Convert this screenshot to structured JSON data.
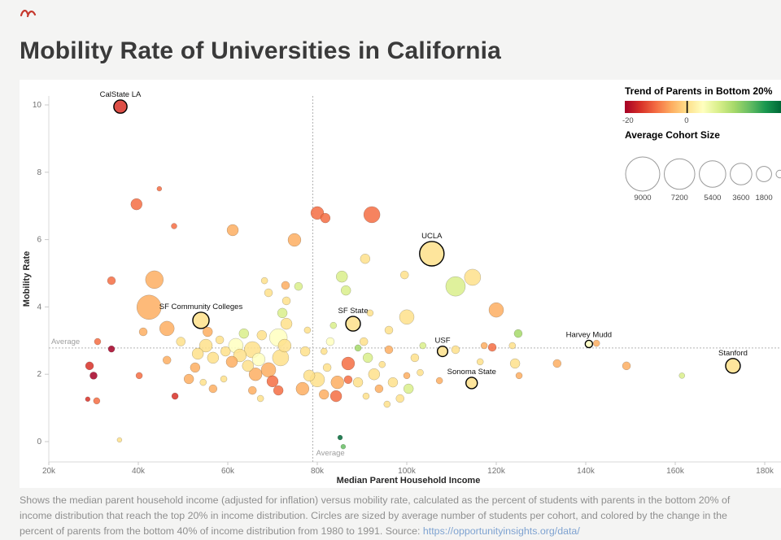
{
  "page": {
    "title": "Mobility Rate of Universities in California",
    "caption_text": "Shows the median parent household income (adjusted for inflation) versus mobility rate, calculated as the percent of students with parents in the bottom 20% of income distribution that reach the top 20% in income distribution. Circles are sized by average number of students per cohort, and colored by the change in the percent of parents from the bottom 40% of income distribution from 1980 to 1991. Source: ",
    "caption_link": "https://opportunityinsights.org/data/"
  },
  "chart_data": {
    "type": "scatter",
    "title": "Mobility Rate of Universities in California",
    "xlabel": "Median Parent Household Income",
    "ylabel": "Mobility Rate",
    "x_unit": "USD, thousands",
    "xlim": [
      20,
      185
    ],
    "ylim": [
      -0.6,
      10.5
    ],
    "grid": false,
    "x_ticks": [
      {
        "v": 20,
        "l": "20k"
      },
      {
        "v": 40,
        "l": "40k"
      },
      {
        "v": 60,
        "l": "60k"
      },
      {
        "v": 80,
        "l": "80k"
      },
      {
        "v": 100,
        "l": "100k"
      },
      {
        "v": 120,
        "l": "120k"
      },
      {
        "v": 140,
        "l": "140k"
      },
      {
        "v": 160,
        "l": "160k"
      },
      {
        "v": 180,
        "l": "180k"
      }
    ],
    "y_ticks": [
      {
        "v": 0,
        "l": "0"
      },
      {
        "v": 2,
        "l": "2"
      },
      {
        "v": 4,
        "l": "4"
      },
      {
        "v": 6,
        "l": "6"
      },
      {
        "v": 8,
        "l": "8"
      },
      {
        "v": 10,
        "l": "10"
      }
    ],
    "avg_x": {
      "value": 79,
      "label": "Average"
    },
    "avg_y": {
      "value": 2.78,
      "label": "Average"
    },
    "legend_trend": {
      "title": "Trend of Parents in Bottom 20%",
      "colors": [
        "#a50026",
        "#d73027",
        "#f46d43",
        "#fdae61",
        "#fee08b",
        "#ffffbf",
        "#d9ef8b",
        "#a6d96a",
        "#66bd63",
        "#1a9850",
        "#006837"
      ],
      "zero_frac": 0.395,
      "ticks": [
        {
          "l": "-20",
          "frac": 0.02
        },
        {
          "l": "0",
          "frac": 0.395
        }
      ]
    },
    "legend_size": {
      "title": "Average Cohort Size",
      "max_s": 9000,
      "max_r": 21,
      "items": [
        {
          "s": 9000,
          "l": "9000"
        },
        {
          "s": 7200,
          "l": "7200"
        },
        {
          "s": 5400,
          "l": "5400"
        },
        {
          "s": 3600,
          "l": "3600"
        },
        {
          "s": 1800,
          "l": "1800"
        },
        {
          "s": 450,
          "l": ""
        }
      ]
    },
    "points": [
      {
        "x": 36.0,
        "y": 9.95,
        "s": 1350,
        "c": "#d73027",
        "n": "CalState LA"
      },
      {
        "x": 105.6,
        "y": 5.58,
        "s": 4600,
        "c": "#fee08b",
        "n": "UCLA"
      },
      {
        "x": 54.0,
        "y": 3.6,
        "s": 2050,
        "c": "#fee08b",
        "n": "SF Community Colleges"
      },
      {
        "x": 88.0,
        "y": 3.5,
        "s": 1650,
        "c": "#fee08b",
        "n": "SF State"
      },
      {
        "x": 108.0,
        "y": 2.68,
        "s": 830,
        "c": "#fee08b",
        "n": "USF"
      },
      {
        "x": 140.7,
        "y": 2.9,
        "s": 420,
        "c": "#ffffbf",
        "n": "Harvey Mudd"
      },
      {
        "x": 114.5,
        "y": 1.74,
        "s": 1000,
        "c": "#fee08b",
        "n": "Sonoma State"
      },
      {
        "x": 172.9,
        "y": 2.25,
        "s": 1650,
        "c": "#fee08b",
        "n": "Stanford"
      },
      {
        "x": 39.6,
        "y": 7.05,
        "s": 1000,
        "c": "#f46d43"
      },
      {
        "x": 44.7,
        "y": 7.51,
        "s": 180,
        "c": "#f46d43"
      },
      {
        "x": 34.0,
        "y": 4.78,
        "s": 510,
        "c": "#f46d43"
      },
      {
        "x": 43.6,
        "y": 4.81,
        "s": 2450,
        "c": "#fdae61"
      },
      {
        "x": 42.4,
        "y": 3.99,
        "s": 4600,
        "c": "#fdae61"
      },
      {
        "x": 48.0,
        "y": 6.4,
        "s": 250,
        "c": "#f46d43"
      },
      {
        "x": 61.1,
        "y": 6.28,
        "s": 1000,
        "c": "#fdae61"
      },
      {
        "x": 74.9,
        "y": 5.99,
        "s": 1300,
        "c": "#fdae61"
      },
      {
        "x": 80.0,
        "y": 6.79,
        "s": 1300,
        "c": "#f46d43"
      },
      {
        "x": 81.8,
        "y": 6.64,
        "s": 730,
        "c": "#f46d43"
      },
      {
        "x": 92.2,
        "y": 6.74,
        "s": 2050,
        "c": "#f46d43"
      },
      {
        "x": 90.7,
        "y": 5.43,
        "s": 730,
        "c": "#fee08b"
      },
      {
        "x": 110.9,
        "y": 4.61,
        "s": 2950,
        "c": "#d9ef8b"
      },
      {
        "x": 114.7,
        "y": 4.88,
        "s": 2050,
        "c": "#fee08b"
      },
      {
        "x": 120.0,
        "y": 3.91,
        "s": 1650,
        "c": "#fdae61"
      },
      {
        "x": 100.0,
        "y": 3.7,
        "s": 1650,
        "c": "#fee08b"
      },
      {
        "x": 86.4,
        "y": 4.49,
        "s": 730,
        "c": "#d9ef8b"
      },
      {
        "x": 85.5,
        "y": 4.9,
        "s": 1000,
        "c": "#d9ef8b"
      },
      {
        "x": 96.0,
        "y": 2.73,
        "s": 510,
        "c": "#fdae61"
      },
      {
        "x": 86.9,
        "y": 2.32,
        "s": 1300,
        "c": "#f46d43"
      },
      {
        "x": 84.5,
        "y": 1.76,
        "s": 1300,
        "c": "#fdae61"
      },
      {
        "x": 84.2,
        "y": 1.35,
        "s": 1000,
        "c": "#f46d43"
      },
      {
        "x": 85.1,
        "y": 0.12,
        "s": 180,
        "c": "#006837"
      },
      {
        "x": 85.8,
        "y": -0.15,
        "s": 180,
        "c": "#66bd63"
      },
      {
        "x": 29.1,
        "y": 2.25,
        "s": 510,
        "c": "#d73027"
      },
      {
        "x": 30.0,
        "y": 1.96,
        "s": 420,
        "c": "#a50026"
      },
      {
        "x": 28.7,
        "y": 1.26,
        "s": 180,
        "c": "#d73027"
      },
      {
        "x": 30.7,
        "y": 1.21,
        "s": 330,
        "c": "#f46d43"
      },
      {
        "x": 34.0,
        "y": 2.75,
        "s": 330,
        "c": "#a50026"
      },
      {
        "x": 35.8,
        "y": 0.05,
        "s": 180,
        "c": "#fee08b"
      },
      {
        "x": 40.2,
        "y": 1.96,
        "s": 330,
        "c": "#f46d43"
      },
      {
        "x": 41.1,
        "y": 3.26,
        "s": 510,
        "c": "#fdae61"
      },
      {
        "x": 46.4,
        "y": 3.36,
        "s": 1650,
        "c": "#fdae61"
      },
      {
        "x": 49.5,
        "y": 2.97,
        "s": 620,
        "c": "#fee08b"
      },
      {
        "x": 46.4,
        "y": 2.42,
        "s": 510,
        "c": "#fdae61"
      },
      {
        "x": 48.2,
        "y": 1.35,
        "s": 330,
        "c": "#d73027"
      },
      {
        "x": 51.3,
        "y": 1.86,
        "s": 730,
        "c": "#fdae61"
      },
      {
        "x": 53.3,
        "y": 2.61,
        "s": 1000,
        "c": "#fee08b"
      },
      {
        "x": 52.7,
        "y": 2.2,
        "s": 730,
        "c": "#fdae61"
      },
      {
        "x": 55.1,
        "y": 2.85,
        "s": 1300,
        "c": "#fee08b"
      },
      {
        "x": 56.7,
        "y": 2.49,
        "s": 1000,
        "c": "#fee08b"
      },
      {
        "x": 55.5,
        "y": 3.26,
        "s": 730,
        "c": "#fdae61"
      },
      {
        "x": 58.2,
        "y": 3.02,
        "s": 510,
        "c": "#fee08b"
      },
      {
        "x": 59.5,
        "y": 2.68,
        "s": 730,
        "c": "#fee08b"
      },
      {
        "x": 60.9,
        "y": 2.37,
        "s": 1000,
        "c": "#fdae61"
      },
      {
        "x": 61.8,
        "y": 2.85,
        "s": 1650,
        "c": "#ffffbf"
      },
      {
        "x": 62.7,
        "y": 2.56,
        "s": 1300,
        "c": "#fee08b"
      },
      {
        "x": 63.6,
        "y": 3.21,
        "s": 730,
        "c": "#d9ef8b"
      },
      {
        "x": 64.5,
        "y": 2.25,
        "s": 1000,
        "c": "#fee08b"
      },
      {
        "x": 65.5,
        "y": 2.73,
        "s": 2050,
        "c": "#fee08b"
      },
      {
        "x": 66.9,
        "y": 2.44,
        "s": 1300,
        "c": "#ffffbf"
      },
      {
        "x": 66.2,
        "y": 2.0,
        "s": 1300,
        "c": "#fdae61"
      },
      {
        "x": 67.6,
        "y": 3.16,
        "s": 730,
        "c": "#fee08b"
      },
      {
        "x": 69.1,
        "y": 2.13,
        "s": 1650,
        "c": "#fdae61"
      },
      {
        "x": 70.0,
        "y": 1.79,
        "s": 1000,
        "c": "#f46d43"
      },
      {
        "x": 71.3,
        "y": 1.52,
        "s": 730,
        "c": "#f46d43"
      },
      {
        "x": 71.8,
        "y": 2.49,
        "s": 2050,
        "c": "#fee08b"
      },
      {
        "x": 71.3,
        "y": 3.09,
        "s": 2450,
        "c": "#ffffbf"
      },
      {
        "x": 72.7,
        "y": 2.85,
        "s": 1300,
        "c": "#fee08b"
      },
      {
        "x": 73.1,
        "y": 3.5,
        "s": 1000,
        "c": "#fee08b"
      },
      {
        "x": 72.2,
        "y": 3.82,
        "s": 730,
        "c": "#d9ef8b"
      },
      {
        "x": 69.1,
        "y": 4.42,
        "s": 510,
        "c": "#fee08b"
      },
      {
        "x": 68.2,
        "y": 4.78,
        "s": 330,
        "c": "#fee08b"
      },
      {
        "x": 73.1,
        "y": 4.18,
        "s": 510,
        "c": "#fee08b"
      },
      {
        "x": 72.9,
        "y": 4.64,
        "s": 510,
        "c": "#fdae61"
      },
      {
        "x": 75.8,
        "y": 4.61,
        "s": 510,
        "c": "#d9ef8b"
      },
      {
        "x": 77.3,
        "y": 2.68,
        "s": 730,
        "c": "#fee08b"
      },
      {
        "x": 77.8,
        "y": 3.31,
        "s": 330,
        "c": "#fee08b"
      },
      {
        "x": 78.2,
        "y": 1.96,
        "s": 1000,
        "c": "#fee08b"
      },
      {
        "x": 76.7,
        "y": 1.57,
        "s": 1300,
        "c": "#fdae61"
      },
      {
        "x": 80.0,
        "y": 1.84,
        "s": 1650,
        "c": "#fee08b"
      },
      {
        "x": 81.5,
        "y": 1.4,
        "s": 730,
        "c": "#fdae61"
      },
      {
        "x": 82.2,
        "y": 2.2,
        "s": 510,
        "c": "#fee08b"
      },
      {
        "x": 81.5,
        "y": 2.68,
        "s": 330,
        "c": "#fee08b"
      },
      {
        "x": 82.9,
        "y": 2.97,
        "s": 510,
        "c": "#ffffbf"
      },
      {
        "x": 83.6,
        "y": 3.45,
        "s": 330,
        "c": "#d9ef8b"
      },
      {
        "x": 89.1,
        "y": 2.78,
        "s": 330,
        "c": "#a6d96a"
      },
      {
        "x": 86.9,
        "y": 1.84,
        "s": 510,
        "c": "#f46d43"
      },
      {
        "x": 89.1,
        "y": 1.76,
        "s": 730,
        "c": "#fee08b"
      },
      {
        "x": 90.9,
        "y": 1.35,
        "s": 330,
        "c": "#fee08b"
      },
      {
        "x": 90.4,
        "y": 2.97,
        "s": 510,
        "c": "#fee08b"
      },
      {
        "x": 91.3,
        "y": 2.49,
        "s": 730,
        "c": "#d9ef8b"
      },
      {
        "x": 91.8,
        "y": 3.82,
        "s": 330,
        "c": "#fee08b"
      },
      {
        "x": 92.7,
        "y": 2.0,
        "s": 1000,
        "c": "#fee08b"
      },
      {
        "x": 93.8,
        "y": 1.57,
        "s": 510,
        "c": "#fdae61"
      },
      {
        "x": 94.5,
        "y": 2.29,
        "s": 330,
        "c": "#fee08b"
      },
      {
        "x": 95.6,
        "y": 1.11,
        "s": 330,
        "c": "#fee08b"
      },
      {
        "x": 96.0,
        "y": 3.31,
        "s": 510,
        "c": "#fee08b"
      },
      {
        "x": 96.9,
        "y": 1.76,
        "s": 730,
        "c": "#fee08b"
      },
      {
        "x": 98.5,
        "y": 1.28,
        "s": 510,
        "c": "#fee08b"
      },
      {
        "x": 99.5,
        "y": 4.95,
        "s": 510,
        "c": "#fee08b"
      },
      {
        "x": 100.0,
        "y": 1.96,
        "s": 330,
        "c": "#fdae61"
      },
      {
        "x": 100.4,
        "y": 1.57,
        "s": 730,
        "c": "#d9ef8b"
      },
      {
        "x": 101.8,
        "y": 2.49,
        "s": 510,
        "c": "#fee08b"
      },
      {
        "x": 103.0,
        "y": 2.05,
        "s": 330,
        "c": "#fee08b"
      },
      {
        "x": 103.6,
        "y": 2.85,
        "s": 330,
        "c": "#d9ef8b"
      },
      {
        "x": 107.3,
        "y": 1.81,
        "s": 330,
        "c": "#fdae61"
      },
      {
        "x": 110.9,
        "y": 2.73,
        "s": 510,
        "c": "#fee08b"
      },
      {
        "x": 116.4,
        "y": 2.37,
        "s": 330,
        "c": "#fee08b"
      },
      {
        "x": 117.3,
        "y": 2.85,
        "s": 330,
        "c": "#fdae61"
      },
      {
        "x": 119.1,
        "y": 2.8,
        "s": 510,
        "c": "#f46d43"
      },
      {
        "x": 123.6,
        "y": 2.85,
        "s": 330,
        "c": "#fee08b"
      },
      {
        "x": 124.2,
        "y": 2.32,
        "s": 730,
        "c": "#fee08b"
      },
      {
        "x": 124.9,
        "y": 3.21,
        "s": 510,
        "c": "#a6d96a"
      },
      {
        "x": 125.1,
        "y": 1.96,
        "s": 330,
        "c": "#fdae61"
      },
      {
        "x": 133.6,
        "y": 2.32,
        "s": 510,
        "c": "#fdae61"
      },
      {
        "x": 142.4,
        "y": 2.92,
        "s": 330,
        "c": "#fdae61"
      },
      {
        "x": 149.1,
        "y": 2.25,
        "s": 510,
        "c": "#fdae61"
      },
      {
        "x": 161.5,
        "y": 1.96,
        "s": 250,
        "c": "#d9ef8b"
      },
      {
        "x": 65.5,
        "y": 1.52,
        "s": 510,
        "c": "#fdae61"
      },
      {
        "x": 67.3,
        "y": 1.28,
        "s": 330,
        "c": "#fee08b"
      },
      {
        "x": 56.7,
        "y": 1.57,
        "s": 510,
        "c": "#fdae61"
      },
      {
        "x": 59.1,
        "y": 1.86,
        "s": 330,
        "c": "#fee08b"
      },
      {
        "x": 54.5,
        "y": 1.76,
        "s": 330,
        "c": "#fee08b"
      },
      {
        "x": 30.9,
        "y": 2.97,
        "s": 330,
        "c": "#f46d43"
      }
    ]
  }
}
